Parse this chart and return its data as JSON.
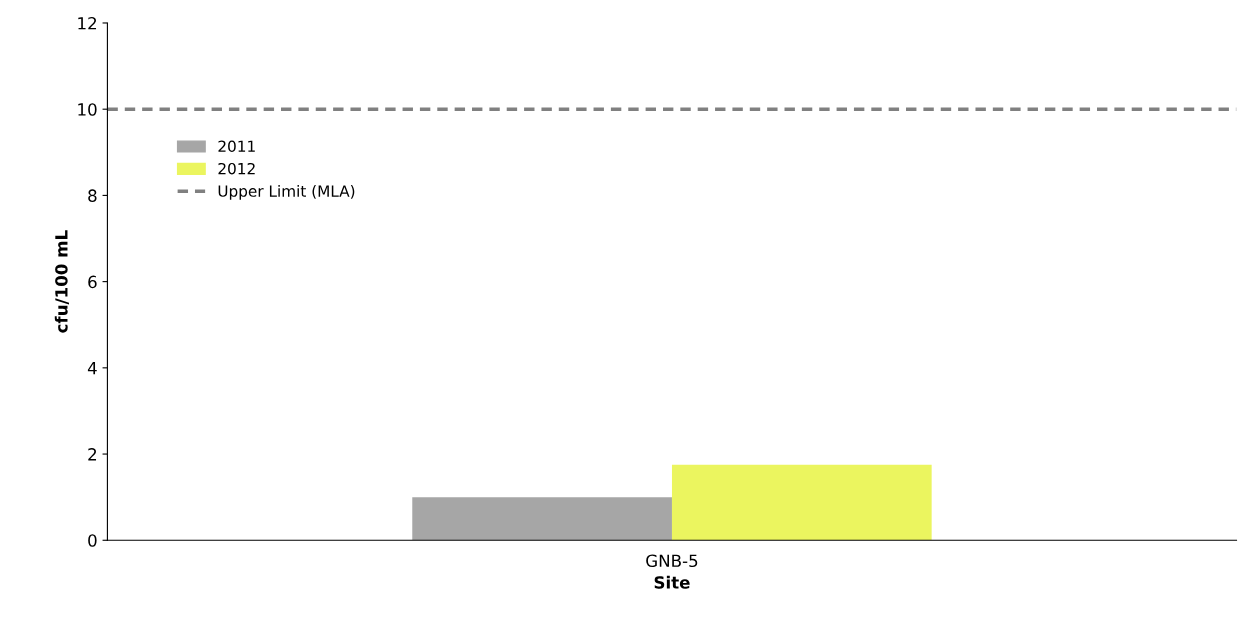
{
  "chart_data": {
    "type": "bar",
    "xlabel": "Site",
    "ylabel": "cfu/100 mL",
    "categories": [
      "GNB-5"
    ],
    "series": [
      {
        "name": "2011",
        "color": "#a6a6a6",
        "values": [
          1
        ]
      },
      {
        "name": "2012",
        "color": "#ebf55f",
        "values": [
          1.75
        ]
      }
    ],
    "ylim": [
      0,
      12
    ],
    "yticks": [
      0,
      2,
      4,
      6,
      8,
      10,
      12
    ],
    "ref_lines": [
      {
        "axis": "y",
        "value": 10,
        "label": "Upper Limit (MLA)",
        "color": "#808080",
        "line_style": "dashed"
      }
    ],
    "grid": false,
    "legend": "top left"
  }
}
